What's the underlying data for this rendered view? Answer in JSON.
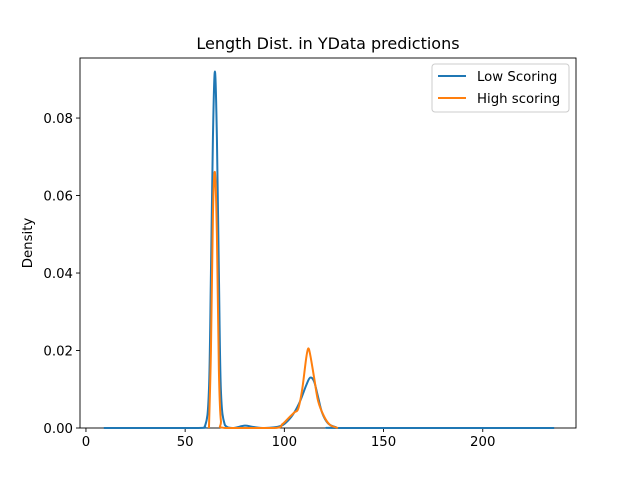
{
  "chart_data": {
    "type": "line",
    "title": "Length Dist. in YData predictions",
    "xlabel": "",
    "ylabel": "Density",
    "xlim": [
      -3,
      247
    ],
    "ylim": [
      0,
      0.0955
    ],
    "x_ticks": [
      0,
      50,
      100,
      150,
      200
    ],
    "x_tick_labels": [
      "0",
      "50",
      "100",
      "150",
      "200"
    ],
    "y_ticks": [
      0.0,
      0.02,
      0.04,
      0.06,
      0.08
    ],
    "y_tick_labels": [
      "0.00",
      "0.02",
      "0.04",
      "0.06",
      "0.08"
    ],
    "grid": false,
    "legend_position": "top-right",
    "series": [
      {
        "name": "Low Scoring",
        "color": "#1f77b4",
        "points": [
          [
            9,
            0
          ],
          [
            55,
            0
          ],
          [
            60,
            0.0005
          ],
          [
            62,
            0.01
          ],
          [
            63,
            0.04
          ],
          [
            64,
            0.075
          ],
          [
            65,
            0.092
          ],
          [
            66,
            0.075
          ],
          [
            67,
            0.04
          ],
          [
            68,
            0.01
          ],
          [
            70,
            0.0008
          ],
          [
            74,
            0
          ],
          [
            80,
            0.0006
          ],
          [
            84,
            0.0003
          ],
          [
            90,
            0
          ],
          [
            98,
            0.0005
          ],
          [
            102,
            0.002
          ],
          [
            105,
            0.004
          ],
          [
            108,
            0.007
          ],
          [
            111,
            0.011
          ],
          [
            113,
            0.013
          ],
          [
            115,
            0.012
          ],
          [
            117,
            0.008
          ],
          [
            119,
            0.004
          ],
          [
            122,
            0.0012
          ],
          [
            126,
            0.0002
          ],
          [
            130,
            0
          ],
          [
            236,
            0
          ]
        ]
      },
      {
        "name": "High scoring",
        "color": "#ff7f0e",
        "points": [
          [
            62,
            0
          ],
          [
            63,
            0.02
          ],
          [
            64,
            0.055
          ],
          [
            65,
            0.066
          ],
          [
            66,
            0.05
          ],
          [
            67,
            0.015
          ],
          [
            68,
            0.002
          ],
          [
            70,
            0
          ],
          [
            95,
            0
          ],
          [
            99,
            0.001
          ],
          [
            102,
            0.0025
          ],
          [
            105,
            0.004
          ],
          [
            107,
            0.005
          ],
          [
            109,
            0.01
          ],
          [
            111,
            0.018
          ],
          [
            112,
            0.0205
          ],
          [
            113,
            0.019
          ],
          [
            115,
            0.013
          ],
          [
            117,
            0.007
          ],
          [
            120,
            0.003
          ],
          [
            123,
            0.0008
          ],
          [
            127,
            0
          ]
        ]
      }
    ]
  }
}
